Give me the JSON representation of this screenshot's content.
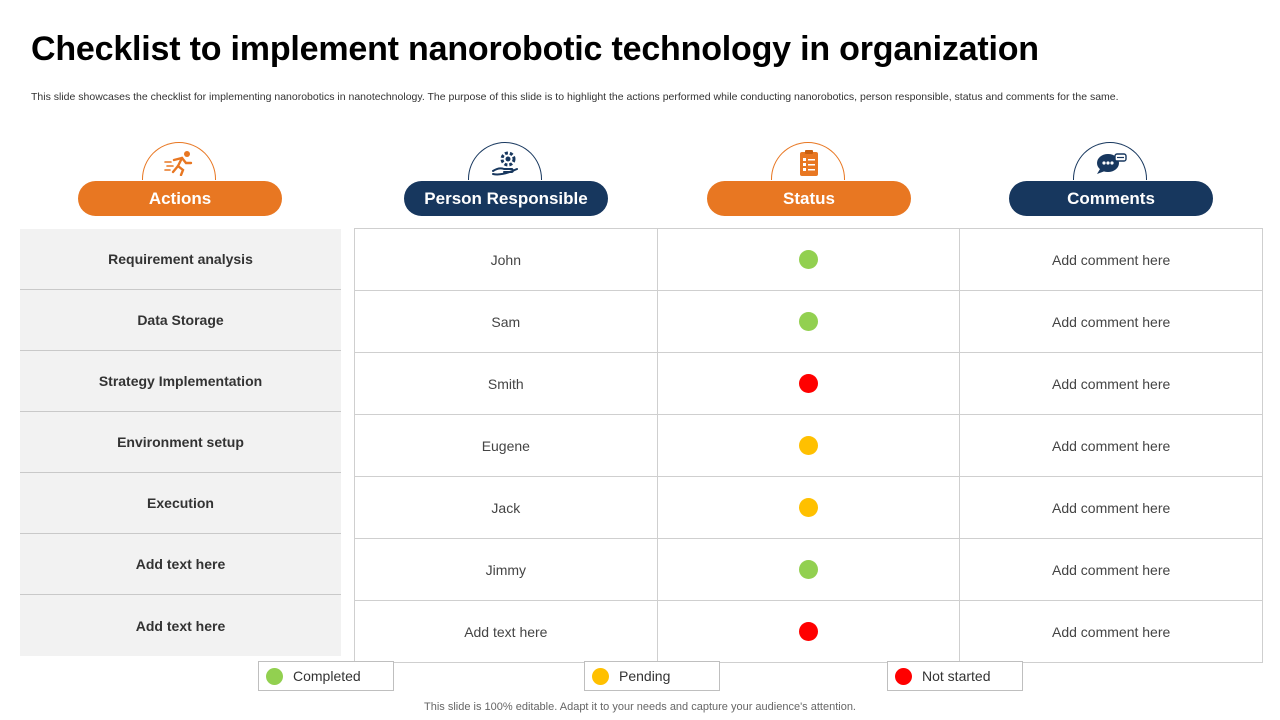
{
  "title": "Checklist to implement nanorobotic technology in organization",
  "subtitle": "This slide showcases the checklist for implementing nanorobotics in nanotechnology. The purpose of this slide is to highlight the actions performed while conducting nanorobotics, person responsible, status and comments for the same.",
  "headers": {
    "actions": "Actions",
    "person": "Person Responsible",
    "status": "Status",
    "comments": "Comments"
  },
  "icons": {
    "actions": "running-person-icon",
    "person": "hand-gear-icon",
    "status": "clipboard-checklist-icon",
    "comments": "chat-bubble-icon"
  },
  "colors": {
    "orange": "#e87722",
    "navy": "#17375e",
    "completed": "#92d050",
    "pending": "#ffc000",
    "not_started": "#ff0000"
  },
  "rows": [
    {
      "action": "Requirement analysis",
      "person": "John",
      "status": "completed",
      "comment": "Add comment here"
    },
    {
      "action": "Data Storage",
      "person": "Sam",
      "status": "completed",
      "comment": "Add comment here"
    },
    {
      "action": "Strategy Implementation",
      "person": "Smith",
      "status": "not_started",
      "comment": "Add comment here"
    },
    {
      "action": "Environment setup",
      "person": "Eugene",
      "status": "pending",
      "comment": "Add comment here"
    },
    {
      "action": "Execution",
      "person": "Jack",
      "status": "pending",
      "comment": "Add comment here"
    },
    {
      "action": "Add text here",
      "person": "Jimmy",
      "status": "completed",
      "comment": "Add comment here"
    },
    {
      "action": "Add text here",
      "person": "Add text here",
      "status": "not_started",
      "comment": "Add comment here"
    }
  ],
  "legend": {
    "completed": "Completed",
    "pending": "Pending",
    "not_started": "Not started"
  },
  "footer": "This slide is 100% editable. Adapt it to your needs and capture your audience's attention."
}
